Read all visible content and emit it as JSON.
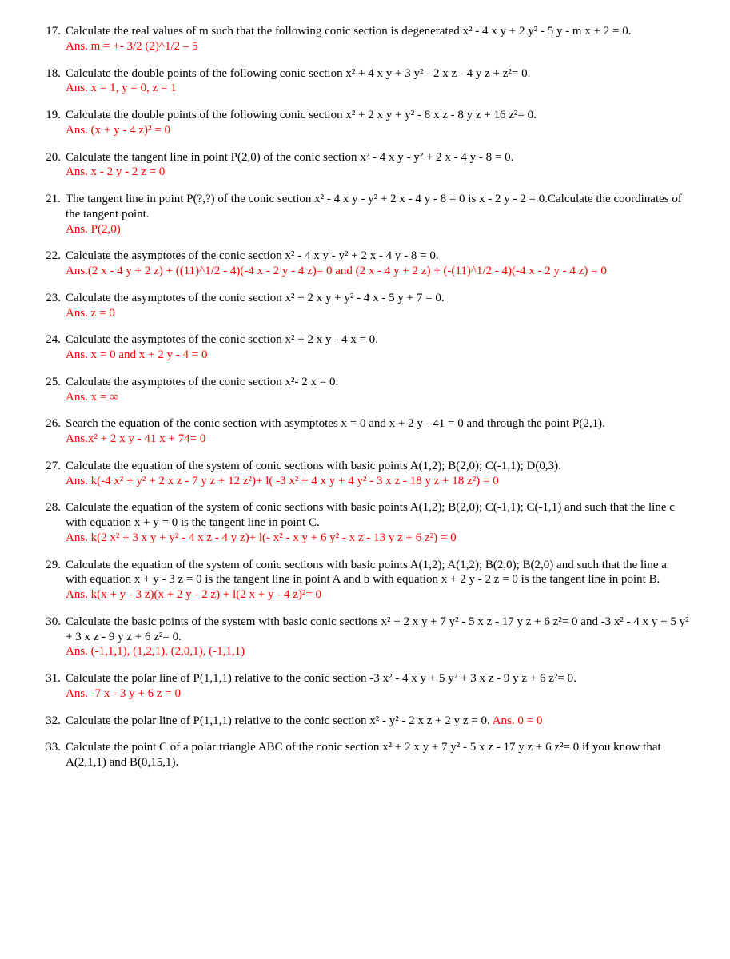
{
  "problems": [
    {
      "num": "17.",
      "q": "Calculate the real values of m such that the following conic section is degenerated x² - 4 x y + 2 y² - 5 y - m x + 2 = 0.",
      "a": " Ans. m = +- 3/2 (2)^1/2 – 5"
    },
    {
      "num": "18.",
      "q": "Calculate the double points of the following conic section x² + 4 x y + 3 y² - 2 x z - 4 y z + z²= 0.",
      "a": "Ans. x = 1, y = 0, z = 1"
    },
    {
      "num": "19.",
      "q": "Calculate the double points of the following conic section x² + 2 x y + y² - 8 x z - 8 y z + 16 z²= 0.",
      "a": "Ans. (x + y - 4 z)² = 0"
    },
    {
      "num": "20.",
      "q": "Calculate the tangent line in point P(2,0) of the conic section x² - 4 x y - y² + 2 x - 4 y - 8 = 0.",
      "a": "Ans. x - 2 y - 2 z = 0"
    },
    {
      "num": "21.",
      "q": "The tangent line in point P(?,?) of the conic section x² - 4 x y - y² + 2 x - 4 y - 8 = 0 is  x - 2 y - 2 = 0.Calculate the coordinates of the tangent point.",
      "a": "Ans. P(2,0)"
    },
    {
      "num": "22.",
      "q": "Calculate the asymptotes of the conic section x² - 4 x y - y² + 2 x - 4 y - 8 = 0.",
      "a": "Ans.(2 x - 4 y + 2 z) + ((11)^1/2  - 4)(-4 x - 2 y - 4 z)= 0 and (2 x - 4 y + 2 z) + (-(11)^1/2  - 4)(-4 x - 2 y - 4 z) = 0"
    },
    {
      "num": "23.",
      "q": "Calculate the asymptotes of the conic section x² + 2 x y + y² - 4 x - 5 y + 7 = 0.",
      "a": "Ans. z = 0"
    },
    {
      "num": "24.",
      "q": "Calculate the asymptotes of the conic section x² + 2 x y - 4 x = 0.",
      "a": "Ans. x = 0 and x + 2 y - 4 = 0"
    },
    {
      "num": "25.",
      "q": "Calculate the asymptotes of the conic section x²- 2 x = 0.",
      "a": "Ans. x = ∞"
    },
    {
      "num": "26.",
      "q": "Search the equation of the conic section with asymptotes x = 0 and x + 2 y - 41 = 0 and through the point P(2,1).",
      "a": "Ans.x² + 2 x y - 41 x + 74= 0"
    },
    {
      "num": "27.",
      "q": "Calculate the equation of the system of conic sections with basic points A(1,2); B(2,0); C(-1,1); D(0,3).",
      "a": "Ans. k(-4 x² + y² + 2 x z - 7 y z + 12 z²)+ l( -3 x² + 4 x y + 4 y² - 3 x z - 18 y z + 18 z²) = 0"
    },
    {
      "num": "28.",
      "q": "Calculate the equation of the system of conic sections with basic points A(1,2); B(2,0); C(-1,1); C(-1,1) and such that the line c with equation x + y = 0 is the tangent line in point C.",
      "a": "Ans. k(2 x² + 3 x y + y² - 4 x z - 4 y z)+ l(- x² - x y + 6 y² - x z - 13 y z + 6 z²) = 0"
    },
    {
      "num": "29.",
      "q": "Calculate the equation of the system of conic sections with basic points A(1,2); A(1,2); B(2,0); B(2,0) and such that the line a with equation x + y - 3 z = 0 is the tangent line in point A and b with equation x + 2 y - 2 z = 0 is the tangent line in point B.",
      "a": "Ans. k(x + y - 3 z)(x + 2 y - 2 z) + l(2 x + y - 4 z)²= 0"
    },
    {
      "num": "30.",
      "q": "Calculate the basic points of the system with basic conic sections x² + 2 x y + 7 y² - 5 x z - 17 y z + 6 z²= 0 and -3 x² - 4 x y + 5 y² + 3 x z - 9 y z + 6 z²= 0.",
      "a": " Ans. (-1,1,1), (1,2,1), (2,0,1), (-1,1,1)"
    },
    {
      "num": "31.",
      "q": "Calculate the polar line of P(1,1,1) relative to the conic  section -3 x² - 4 x y + 5 y² + 3 x z - 9 y z + 6 z²= 0.",
      "a": "Ans. -7 x - 3 y + 6 z = 0"
    },
    {
      "num": "32.",
      "q": "Calculate the polar line of P(1,1,1) relative to the conic  section x² - y² - 2 x z + 2 y z = 0. ",
      "aInline": "Ans. 0 = 0"
    },
    {
      "num": "33.",
      "q": "Calculate the point C of a polar triangle ABC of the conic section x² + 2 x y + 7 y² - 5 x z - 17 y z + 6 z²= 0 if you know that A(2,1,1) and B(0,15,1)."
    }
  ],
  "colors": {
    "text": "#000000",
    "answer": "#ff0000",
    "background": "#ffffff"
  },
  "font": {
    "family": "Times New Roman",
    "size": 15
  }
}
